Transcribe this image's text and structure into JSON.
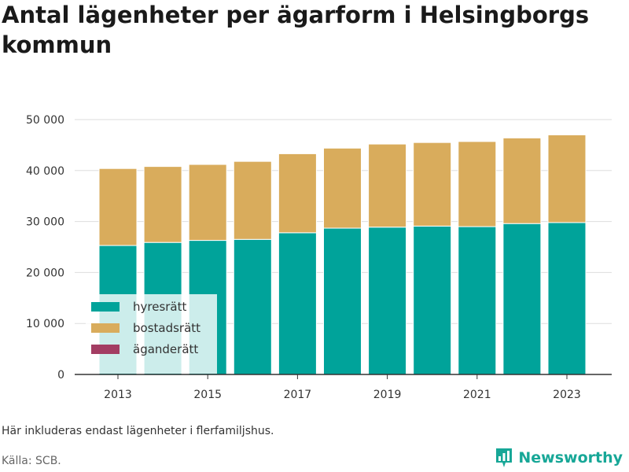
{
  "title": "Antal lägenheter per ägarform i Helsingborgs kommun",
  "note": "Här inkluderas endast lägenheter i flerfamiljshus.",
  "source": "Källa: SCB.",
  "brand": {
    "name": "Newsworthy",
    "icon": "newsworthy-logo-icon"
  },
  "colors": {
    "hyresratt": "#00a39a",
    "bostadsratt": "#d9ac5c",
    "aganderatt": "#a33d63",
    "grid": "#dddddd",
    "axis": "#333333"
  },
  "chart_data": {
    "type": "bar",
    "stacked": true,
    "categories": [
      "2013",
      "2014",
      "2015",
      "2016",
      "2017",
      "2018",
      "2019",
      "2020",
      "2021",
      "2022",
      "2023"
    ],
    "series": [
      {
        "name": "hyresrätt",
        "values": [
          25300,
          25900,
          26300,
          26500,
          27800,
          28700,
          28900,
          29100,
          29000,
          29600,
          29800
        ]
      },
      {
        "name": "bostadsrätt",
        "values": [
          15100,
          14900,
          14900,
          15300,
          15500,
          15700,
          16300,
          16400,
          16700,
          16800,
          17200
        ]
      },
      {
        "name": "äganderätt",
        "values": [
          0,
          0,
          0,
          0,
          0,
          0,
          0,
          0,
          0,
          0,
          0
        ]
      }
    ],
    "x_tick_labels": [
      "2013",
      "2015",
      "2017",
      "2019",
      "2021",
      "2023"
    ],
    "y_ticks": [
      0,
      10000,
      20000,
      30000,
      40000,
      50000
    ],
    "y_tick_labels": [
      "0",
      "10 000",
      "20 000",
      "30 000",
      "40 000",
      "50 000"
    ],
    "ylim": [
      0,
      50000
    ],
    "grid": true,
    "legend_position": "bottom-left"
  }
}
